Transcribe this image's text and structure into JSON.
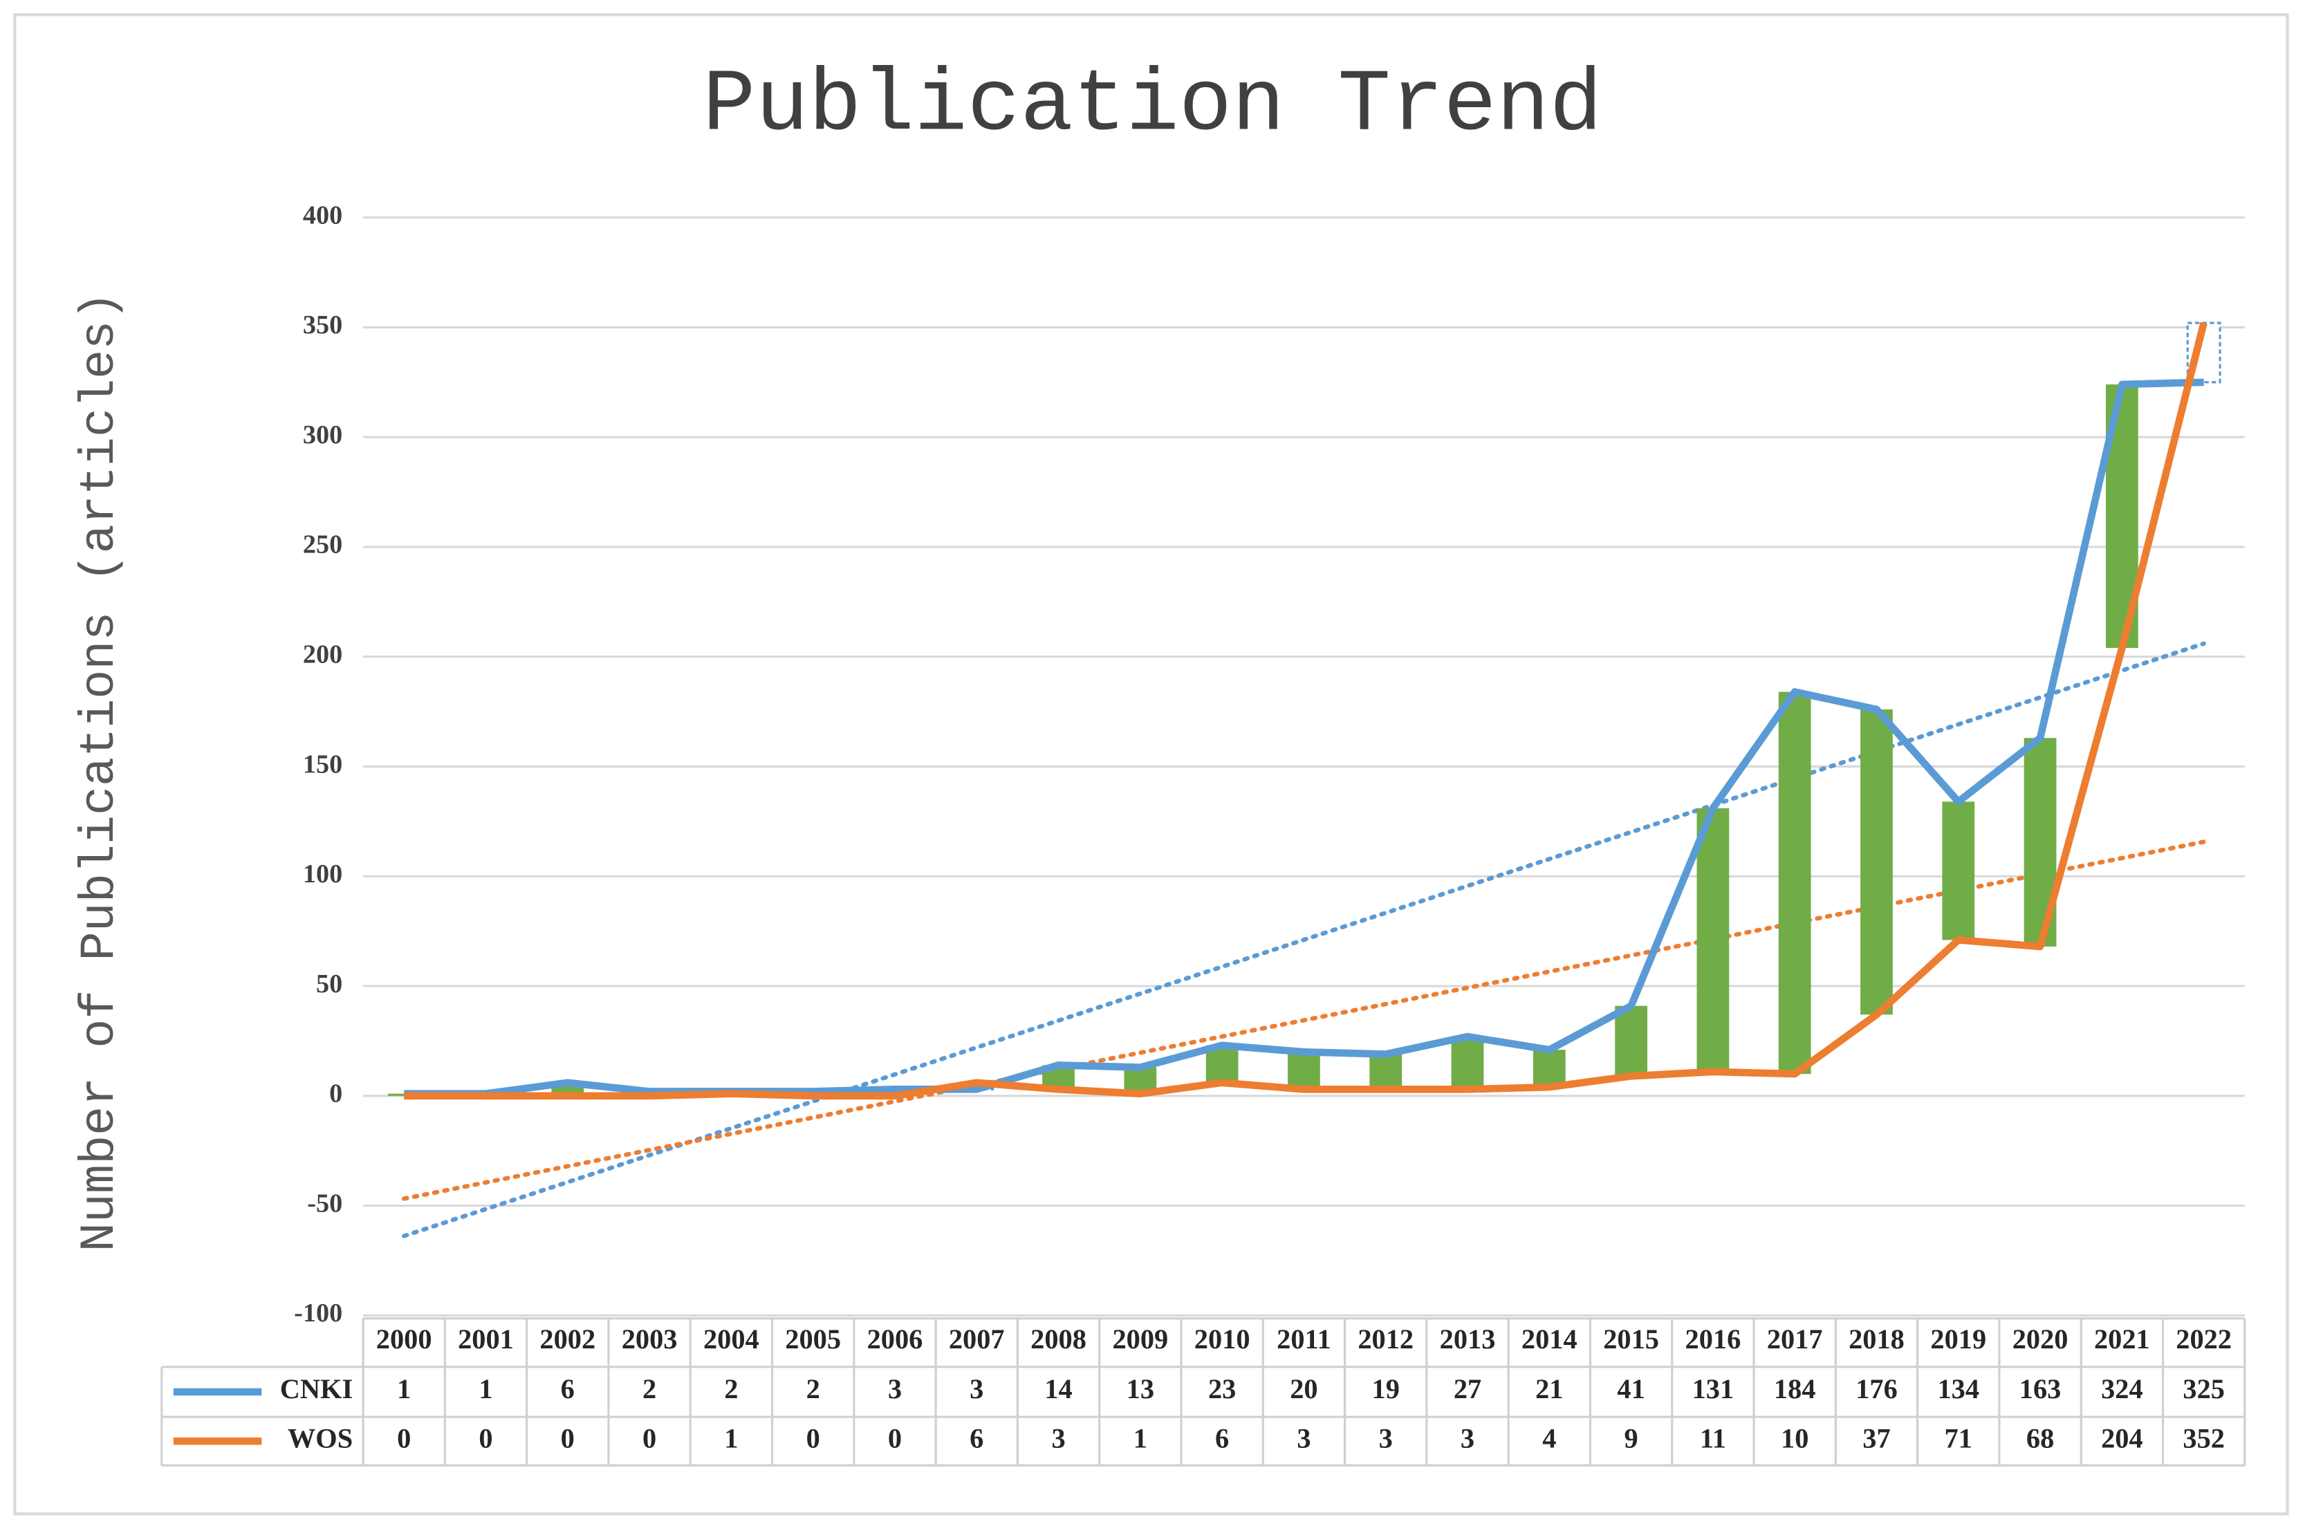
{
  "chart_data": {
    "type": "line",
    "title": "Publication Trend",
    "y_label": "Number of Publications (articles)",
    "categories": [
      "2000",
      "2001",
      "2002",
      "2003",
      "2004",
      "2005",
      "2006",
      "2007",
      "2008",
      "2009",
      "2010",
      "2011",
      "2012",
      "2013",
      "2014",
      "2015",
      "2016",
      "2017",
      "2018",
      "2019",
      "2020",
      "2021",
      "2022"
    ],
    "series": [
      {
        "name": "CNKI",
        "color": "#5b9bd5",
        "values": [
          1,
          1,
          6,
          2,
          2,
          2,
          3,
          3,
          14,
          13,
          23,
          20,
          19,
          27,
          21,
          41,
          131,
          184,
          176,
          134,
          163,
          324,
          325
        ]
      },
      {
        "name": "WOS",
        "color": "#ed7d31",
        "values": [
          0,
          0,
          0,
          0,
          1,
          0,
          0,
          6,
          3,
          1,
          6,
          3,
          3,
          3,
          4,
          9,
          11,
          10,
          37,
          71,
          68,
          204,
          352
        ]
      }
    ],
    "updown_color": "#70ad47",
    "trendline": true,
    "grid": true,
    "data_table": true,
    "ylim": [
      -100,
      400
    ],
    "yticks": [
      -100,
      -50,
      0,
      50,
      100,
      150,
      200,
      250,
      300,
      350,
      400
    ]
  }
}
